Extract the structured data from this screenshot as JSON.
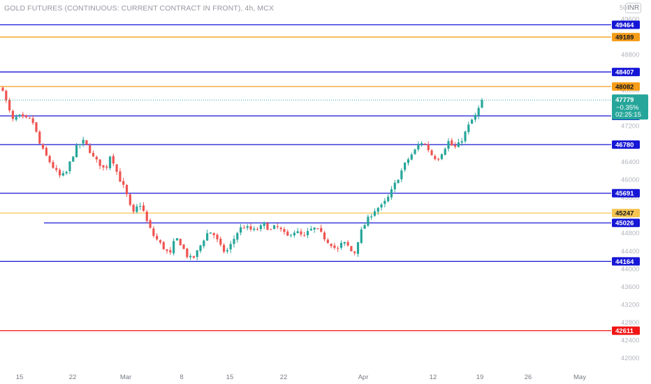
{
  "title": "GOLD FUTURES (CONTINUOUS: CURRENT CONTRACT IN FRONT), 4h, MCX",
  "currency_unit": "INR",
  "price_scale_top_label": "50",
  "colors": {
    "up": "#26a69a",
    "down": "#ef5350",
    "blue_level": "#1616d6",
    "orange_level": "#f59d19",
    "yellow_level": "#f5c451",
    "red_level": "#f01414",
    "last_price": "#26a69a",
    "axis_text": "#b2b5be"
  },
  "last_price_box": {
    "price": "47779",
    "change": "−0.35%",
    "countdown": "02:25:15"
  },
  "chart_data": {
    "type": "candlestick",
    "symbol": "GOLD FUTURES (CONTINUOUS: CURRENT CONTRACT IN FRONT)",
    "interval": "4h",
    "exchange": "MCX",
    "ylim": [
      41900,
      49850
    ],
    "y_ticks": [
      42000,
      42400,
      42800,
      43200,
      43600,
      44000,
      44400,
      44800,
      45200,
      45600,
      46000,
      46400,
      46800,
      47200,
      47600,
      48000,
      48400,
      48800,
      49200,
      49600
    ],
    "x_ticks": [
      "15",
      "22",
      "Mar",
      "8",
      "15",
      "22",
      "Apr",
      "12",
      "19",
      "26",
      "May"
    ],
    "horizontal_levels": [
      {
        "price": 49464,
        "label": "49464",
        "color": "blue"
      },
      {
        "price": 49189,
        "label": "49189",
        "color": "orange"
      },
      {
        "price": 48407,
        "label": "48407",
        "color": "blue"
      },
      {
        "price": 48082,
        "label": "48082",
        "color": "orange"
      },
      {
        "price": 47423,
        "label": "47423",
        "color": "blue"
      },
      {
        "price": 46780,
        "label": "46780",
        "color": "blue"
      },
      {
        "price": 45691,
        "label": "45691",
        "color": "blue"
      },
      {
        "price": 45247,
        "label": "45247",
        "color": "yellow"
      },
      {
        "price": 45026,
        "label": "45026",
        "color": "blue",
        "starts_mid_chart": true
      },
      {
        "price": 44164,
        "label": "44164",
        "color": "blue"
      },
      {
        "price": 42611,
        "label": "42611",
        "color": "red"
      }
    ],
    "last_price": 47779,
    "price_path": [
      [
        0,
        48040
      ],
      [
        4,
        47650
      ],
      [
        9,
        47320
      ],
      [
        14,
        47420
      ],
      [
        19,
        47350
      ],
      [
        24,
        47340
      ],
      [
        28,
        47250
      ],
      [
        32,
        46850
      ],
      [
        37,
        46600
      ],
      [
        42,
        46400
      ],
      [
        47,
        46200
      ],
      [
        52,
        46050
      ],
      [
        57,
        46150
      ],
      [
        62,
        46500
      ],
      [
        67,
        46750
      ],
      [
        72,
        46850
      ],
      [
        77,
        46700
      ],
      [
        82,
        46450
      ],
      [
        87,
        46350
      ],
      [
        92,
        46200
      ],
      [
        97,
        46600
      ],
      [
        101,
        46250
      ],
      [
        105,
        46000
      ],
      [
        110,
        45750
      ],
      [
        114,
        45400
      ],
      [
        118,
        45200
      ],
      [
        122,
        45500
      ],
      [
        126,
        45300
      ],
      [
        130,
        45000
      ],
      [
        135,
        44750
      ],
      [
        140,
        44600
      ],
      [
        145,
        44450
      ],
      [
        150,
        44300
      ],
      [
        155,
        44700
      ],
      [
        160,
        44550
      ],
      [
        165,
        44300
      ],
      [
        170,
        44200
      ],
      [
        175,
        44400
      ],
      [
        180,
        44650
      ],
      [
        185,
        44850
      ],
      [
        190,
        44750
      ],
      [
        195,
        44500
      ],
      [
        200,
        44350
      ],
      [
        205,
        44550
      ],
      [
        210,
        44800
      ],
      [
        215,
        44950
      ],
      [
        220,
        44900
      ],
      [
        225,
        44850
      ],
      [
        230,
        44900
      ],
      [
        235,
        45000
      ],
      [
        240,
        44850
      ],
      [
        245,
        44950
      ],
      [
        250,
        44850
      ],
      [
        255,
        44700
      ],
      [
        260,
        44850
      ],
      [
        265,
        44800
      ],
      [
        270,
        44700
      ],
      [
        275,
        44850
      ],
      [
        280,
        44900
      ],
      [
        285,
        44800
      ],
      [
        290,
        44650
      ],
      [
        295,
        44550
      ],
      [
        300,
        44400
      ],
      [
        305,
        44600
      ],
      [
        310,
        44500
      ],
      [
        315,
        44300
      ],
      [
        320,
        44750
      ],
      [
        325,
        45000
      ],
      [
        330,
        45200
      ],
      [
        335,
        45350
      ],
      [
        340,
        45400
      ],
      [
        345,
        45550
      ],
      [
        350,
        45800
      ],
      [
        355,
        46050
      ],
      [
        360,
        46300
      ],
      [
        365,
        46500
      ],
      [
        370,
        46650
      ],
      [
        375,
        46850
      ],
      [
        380,
        46750
      ],
      [
        385,
        46550
      ],
      [
        390,
        46450
      ],
      [
        395,
        46650
      ],
      [
        400,
        46850
      ],
      [
        405,
        46700
      ],
      [
        410,
        46800
      ],
      [
        415,
        47050
      ],
      [
        420,
        47300
      ],
      [
        425,
        47450
      ],
      [
        430,
        47779
      ]
    ]
  }
}
